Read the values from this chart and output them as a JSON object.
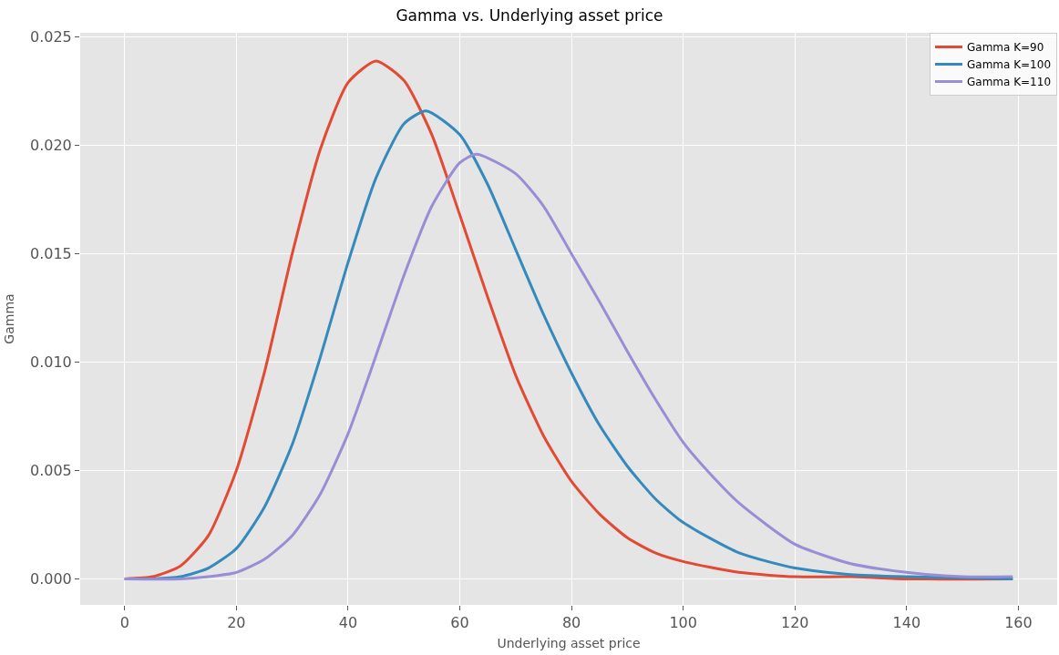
{
  "chart_data": {
    "type": "line",
    "title": "Gamma vs. Underlying asset price",
    "xlabel": "Underlying asset price",
    "ylabel": "Gamma",
    "xlim": [
      -7.95,
      166.95
    ],
    "xticks": [
      0,
      20,
      40,
      60,
      80,
      100,
      120,
      140,
      160
    ],
    "ylim": [
      -0.0012,
      0.0252
    ],
    "yticks": [
      {
        "value": 0,
        "label": "0.000"
      },
      {
        "value": 0.005,
        "label": "0.005"
      },
      {
        "value": 0.01,
        "label": "0.010"
      },
      {
        "value": 0.015,
        "label": "0.015"
      },
      {
        "value": 0.02,
        "label": "0.020"
      },
      {
        "value": 0.025,
        "label": "0.025"
      }
    ],
    "grid": true,
    "legend": "top right",
    "line_style": "solid",
    "marker": "none",
    "series": [
      {
        "name": "Gamma K=90",
        "color": "#e24a33",
        "x": [
          0,
          5,
          10,
          15,
          20,
          25,
          30,
          35,
          40,
          45,
          50,
          55,
          60,
          65,
          70,
          75,
          80,
          85,
          90,
          95,
          100,
          110,
          120,
          130,
          140,
          159
        ],
        "values": [
          0,
          0.0001,
          0.0006,
          0.002,
          0.005,
          0.0095,
          0.015,
          0.0198,
          0.0229,
          0.0239,
          0.023,
          0.0205,
          0.0168,
          0.013,
          0.0094,
          0.0066,
          0.0045,
          0.003,
          0.0019,
          0.0012,
          0.0008,
          0.0003,
          0.0001,
          0.0001,
          0,
          0
        ]
      },
      {
        "name": "Gamma K=100",
        "color": "#348abd",
        "x": [
          0,
          5,
          10,
          15,
          20,
          25,
          30,
          35,
          40,
          45,
          50,
          54,
          60,
          65,
          70,
          75,
          80,
          85,
          90,
          95,
          100,
          110,
          120,
          130,
          140,
          159
        ],
        "values": [
          0,
          0,
          0.0001,
          0.0005,
          0.0014,
          0.0033,
          0.0062,
          0.0102,
          0.0146,
          0.0185,
          0.021,
          0.0216,
          0.0205,
          0.0182,
          0.0152,
          0.0122,
          0.0095,
          0.0071,
          0.0052,
          0.0037,
          0.0026,
          0.0012,
          0.0005,
          0.0002,
          0.0001,
          0
        ]
      },
      {
        "name": "Gamma K=110",
        "color": "#988ed5",
        "x": [
          0,
          10,
          15,
          20,
          25,
          30,
          35,
          40,
          45,
          50,
          55,
          60,
          63,
          70,
          75,
          80,
          85,
          90,
          95,
          100,
          105,
          110,
          120,
          130,
          140,
          150,
          159
        ],
        "values": [
          0,
          0,
          0.0001,
          0.0003,
          0.0009,
          0.002,
          0.0039,
          0.0067,
          0.0103,
          0.014,
          0.0172,
          0.0192,
          0.0196,
          0.0187,
          0.0172,
          0.015,
          0.0128,
          0.0105,
          0.0083,
          0.0063,
          0.0048,
          0.0035,
          0.0016,
          0.0007,
          0.0003,
          0.0001,
          0.0001
        ]
      }
    ]
  }
}
